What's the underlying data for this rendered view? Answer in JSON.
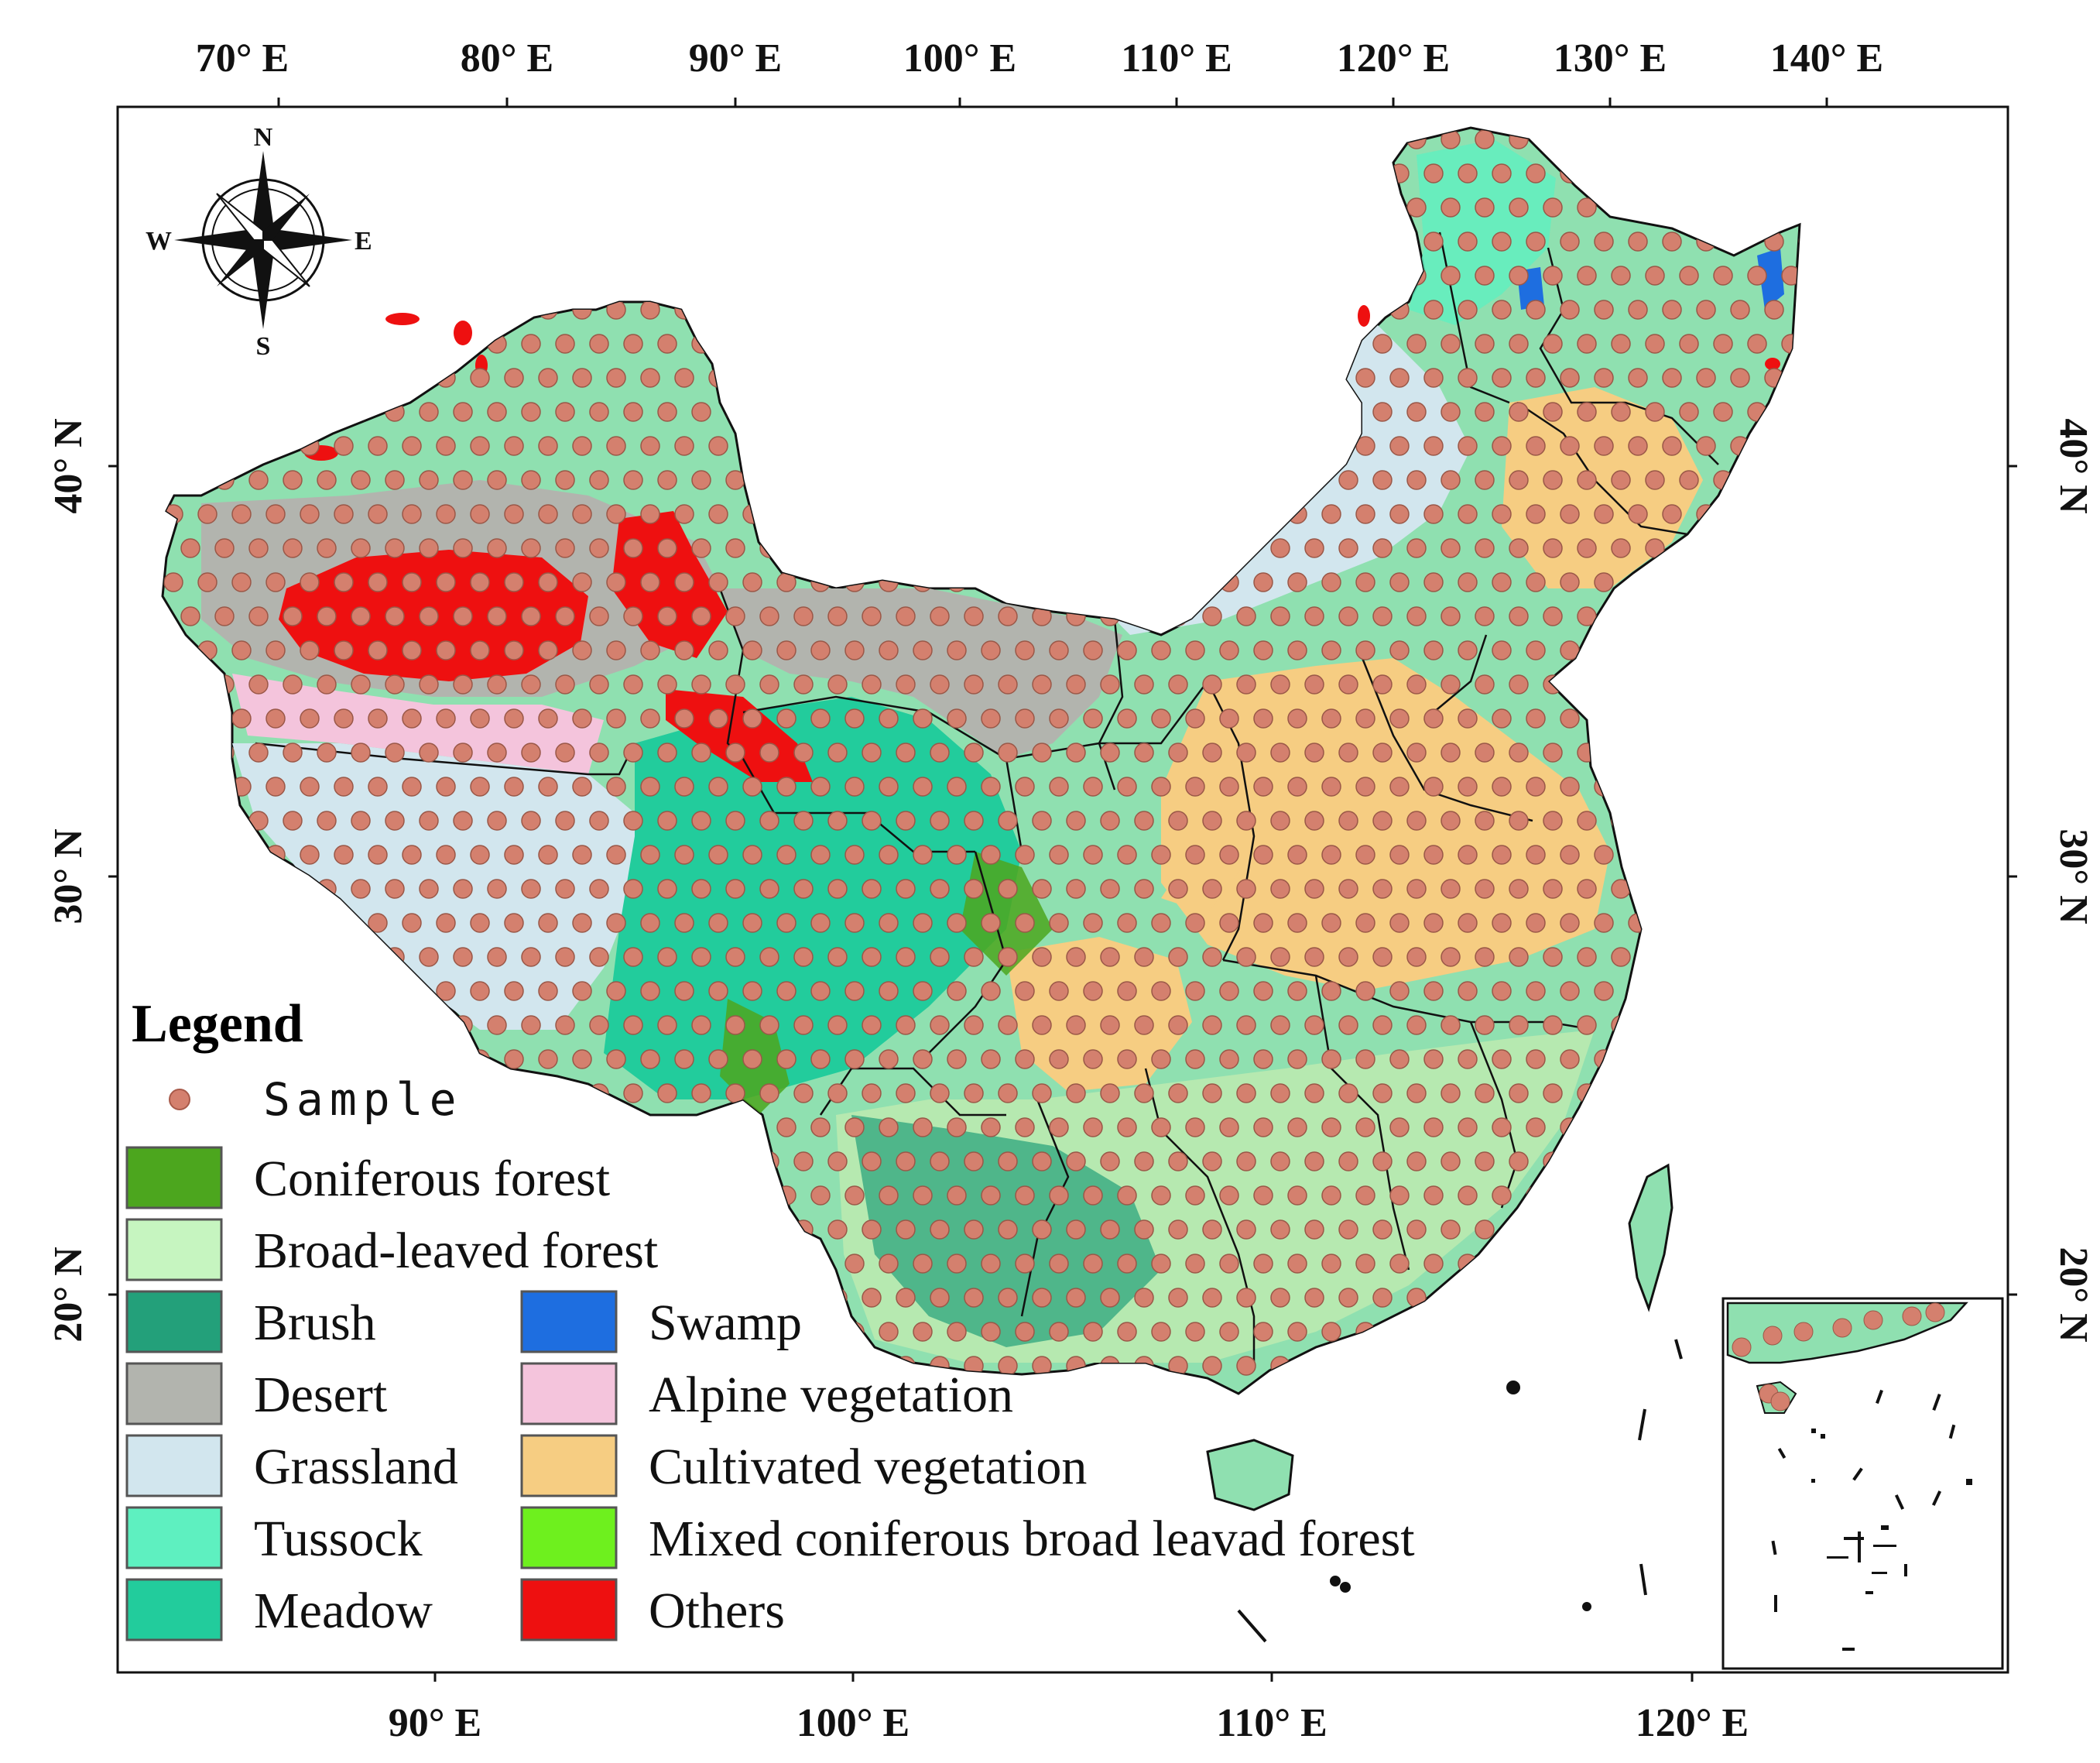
{
  "top_axis": {
    "ticks": [
      "70° E",
      "80° E",
      "90° E",
      "100° E",
      "110° E",
      "120° E",
      "130° E",
      "140° E"
    ]
  },
  "bottom_axis": {
    "ticks": [
      "90° E",
      "100° E",
      "110° E",
      "120° E"
    ]
  },
  "left_axis": {
    "ticks": [
      "40° N",
      "30° N",
      "20° N"
    ]
  },
  "right_axis": {
    "ticks": [
      "40° N",
      "30° N",
      "20° N"
    ]
  },
  "compass": {
    "n": "N",
    "s": "S",
    "e": "E",
    "w": "W"
  },
  "legend": {
    "title": "Legend",
    "sample_label": "Sample",
    "sample_color": "#d4806e",
    "items_left": [
      {
        "label": "Coniferous forest",
        "color": "#4ca61e"
      },
      {
        "label": "Broad-leaved forest",
        "color": "#c6f5c0"
      },
      {
        "label": "Brush",
        "color": "#23a07a"
      },
      {
        "label": "Desert",
        "color": "#b2b4ae"
      },
      {
        "label": "Grassland",
        "color": "#d2e6ee"
      },
      {
        "label": "Tussock",
        "color": "#5ef0c0"
      },
      {
        "label": "Meadow",
        "color": "#22cc9c"
      }
    ],
    "items_right": [
      {
        "label": "Swamp",
        "color": "#1e6ee0"
      },
      {
        "label": "Alpine vegetation",
        "color": "#f4c4dc"
      },
      {
        "label": "Cultivated vegetation",
        "color": "#f6cd82"
      },
      {
        "label": "Mixed coniferous broad leavad forest",
        "color": "#6ef01e"
      },
      {
        "label": "Others",
        "color": "#ee1010"
      }
    ]
  }
}
